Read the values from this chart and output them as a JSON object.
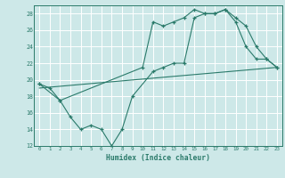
{
  "title": "",
  "xlabel": "Humidex (Indice chaleur)",
  "xlim": [
    -0.5,
    23.5
  ],
  "ylim": [
    12,
    29
  ],
  "yticks": [
    12,
    14,
    16,
    18,
    20,
    22,
    24,
    26,
    28
  ],
  "xticks": [
    0,
    1,
    2,
    3,
    4,
    5,
    6,
    7,
    8,
    9,
    10,
    11,
    12,
    13,
    14,
    15,
    16,
    17,
    18,
    19,
    20,
    21,
    22,
    23
  ],
  "bg_color": "#cde8e8",
  "line_color": "#2a7a6a",
  "grid_color": "#ffffff",
  "line1_x": [
    0,
    1,
    2,
    10,
    11,
    12,
    13,
    14,
    15,
    16,
    17,
    18,
    19,
    20,
    21,
    22,
    23
  ],
  "line1_y": [
    19.5,
    19.0,
    17.5,
    21.5,
    27.0,
    26.5,
    27.0,
    27.5,
    28.5,
    28.0,
    28.0,
    28.5,
    27.5,
    26.5,
    24.0,
    22.5,
    21.5
  ],
  "line2_x": [
    0,
    2,
    3,
    4,
    5,
    6,
    7,
    8,
    9,
    11,
    12,
    13,
    14,
    15,
    16,
    17,
    18,
    19,
    20,
    21,
    22,
    23
  ],
  "line2_y": [
    19.5,
    17.5,
    15.5,
    14.0,
    14.5,
    14.0,
    12.0,
    14.0,
    18.0,
    21.0,
    21.5,
    22.0,
    22.0,
    27.5,
    28.0,
    28.0,
    28.5,
    27.0,
    24.0,
    22.5,
    22.5,
    21.5
  ],
  "line3_x": [
    0,
    23
  ],
  "line3_y": [
    19.0,
    21.5
  ]
}
